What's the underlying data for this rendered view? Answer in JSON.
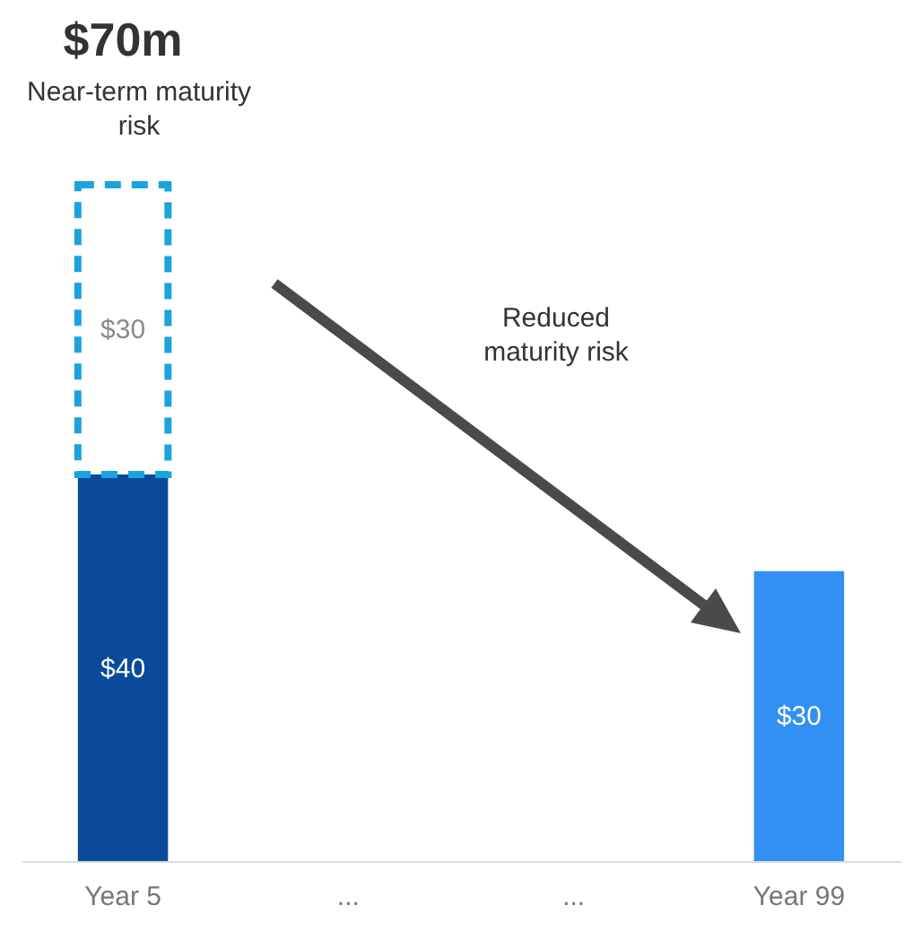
{
  "chart_data": {
    "type": "bar",
    "stacked": true,
    "tick_labels": "x",
    "categories": [
      "Year 5",
      "...",
      "...",
      "Year 99"
    ],
    "series": [
      {
        "color": "#0b4a9b",
        "values": [
          40,
          null,
          null,
          null
        ],
        "value_labels": [
          "$40",
          null,
          null,
          null
        ]
      },
      {
        "color": "#1ba3dc",
        "line_style": "dashed",
        "values": [
          30,
          null,
          null,
          null
        ],
        "value_labels": [
          "$30",
          null,
          null,
          null
        ]
      },
      {
        "color": "#3190f2",
        "values": [
          null,
          null,
          null,
          30
        ],
        "value_labels": [
          null,
          null,
          null,
          "$30"
        ]
      }
    ],
    "totals": [
      "$70m",
      null,
      null,
      null
    ],
    "annotations": [
      "Near-term maturity risk",
      "Reduced maturity risk"
    ]
  }
}
